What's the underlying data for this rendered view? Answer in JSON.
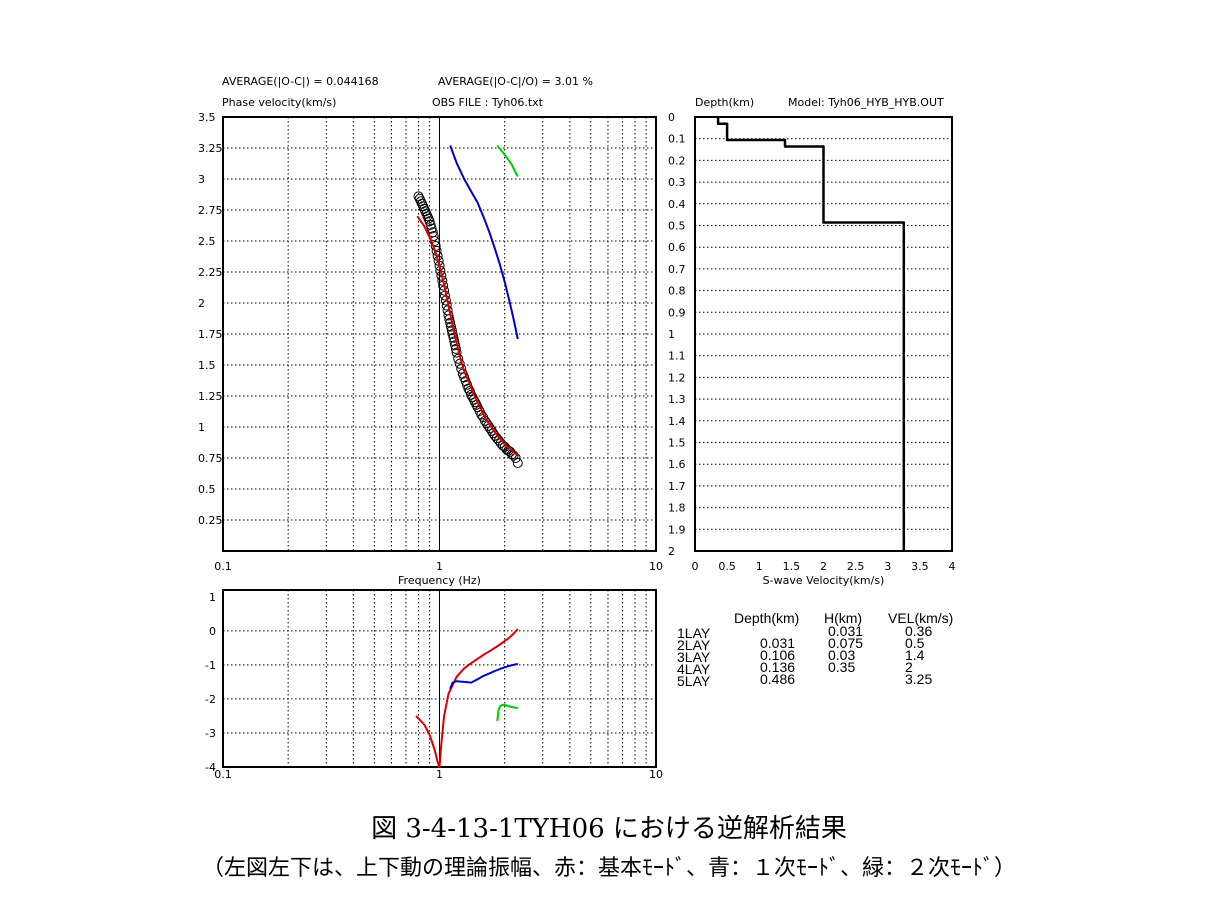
{
  "header": {
    "avg_abs": "AVERAGE(|O-C|) = 0.044168",
    "avg_rel": "AVERAGE(|O-C|/O) = 3.01 %",
    "phase_label": "Phase velocity(km/s)",
    "obs_file": "OBS FILE : Tyh06.txt",
    "depth_label": "Depth(km)",
    "model_label": "Model: Tyh06_HYB_HYB.OUT"
  },
  "chart_data": [
    {
      "type": "scatter",
      "id": "dispersion",
      "xscale": "log",
      "xlim": [
        0.1,
        10
      ],
      "ylim": [
        0,
        3.5
      ],
      "xlabel": "Frequency (Hz)",
      "ylabel": "Phase velocity(km/s)",
      "x_ticks": [
        "0.1",
        "1",
        "10"
      ],
      "y_ticks": [
        "0.25",
        "0.5",
        "0.75",
        "1",
        "1.25",
        "1.5",
        "1.75",
        "2",
        "2.25",
        "2.5",
        "2.75",
        "3",
        "3.25",
        "3.5"
      ],
      "observed": {
        "x": [
          0.8,
          0.81,
          0.82,
          0.83,
          0.84,
          0.85,
          0.86,
          0.87,
          0.88,
          0.89,
          0.9,
          0.91,
          0.92,
          0.93,
          0.94,
          0.95,
          0.96,
          0.97,
          0.98,
          0.99,
          1.0,
          1.01,
          1.02,
          1.03,
          1.04,
          1.05,
          1.06,
          1.07,
          1.08,
          1.09,
          1.1,
          1.11,
          1.12,
          1.13,
          1.14,
          1.15,
          1.16,
          1.17,
          1.18,
          1.19,
          1.2,
          1.22,
          1.24,
          1.26,
          1.28,
          1.3,
          1.32,
          1.34,
          1.36,
          1.38,
          1.4,
          1.42,
          1.44,
          1.46,
          1.48,
          1.5,
          1.53,
          1.56,
          1.59,
          1.62,
          1.65,
          1.68,
          1.71,
          1.74,
          1.77,
          1.8,
          1.84,
          1.88,
          1.92,
          1.96,
          2.0,
          2.04,
          2.08,
          2.12,
          2.16,
          2.2,
          2.25,
          2.3
        ],
        "y": [
          2.86,
          2.84,
          2.82,
          2.8,
          2.78,
          2.76,
          2.74,
          2.72,
          2.7,
          2.68,
          2.66,
          2.63,
          2.6,
          2.57,
          2.54,
          2.5,
          2.46,
          2.42,
          2.38,
          2.34,
          2.3,
          2.26,
          2.22,
          2.18,
          2.14,
          2.1,
          2.06,
          2.02,
          1.98,
          1.94,
          1.9,
          1.87,
          1.84,
          1.81,
          1.78,
          1.75,
          1.72,
          1.69,
          1.66,
          1.63,
          1.6,
          1.55,
          1.51,
          1.47,
          1.43,
          1.4,
          1.37,
          1.34,
          1.31,
          1.29,
          1.26,
          1.24,
          1.22,
          1.2,
          1.18,
          1.16,
          1.13,
          1.1,
          1.08,
          1.05,
          1.03,
          1.01,
          0.99,
          0.97,
          0.95,
          0.93,
          0.91,
          0.89,
          0.87,
          0.85,
          0.84,
          0.82,
          0.81,
          0.8,
          0.78,
          0.77,
          0.75,
          0.71
        ]
      },
      "series": [
        {
          "mode": "fundamental",
          "color": "#dd0000",
          "x": [
            0.79,
            0.85,
            0.9,
            0.95,
            1.0,
            1.05,
            1.1,
            1.15,
            1.2,
            1.25,
            1.3,
            1.4,
            1.5,
            1.6,
            1.7,
            1.8,
            1.9,
            2.0,
            2.1,
            2.2,
            2.3
          ],
          "y": [
            2.7,
            2.62,
            2.53,
            2.43,
            2.3,
            2.15,
            1.98,
            1.82,
            1.68,
            1.55,
            1.45,
            1.32,
            1.2,
            1.1,
            1.02,
            0.96,
            0.91,
            0.86,
            0.83,
            0.8,
            0.77
          ]
        },
        {
          "mode": "1st higher",
          "color": "#0000cc",
          "x": [
            1.12,
            1.2,
            1.3,
            1.4,
            1.5,
            1.6,
            1.7,
            1.8,
            1.9,
            2.0,
            2.1,
            2.2,
            2.3
          ],
          "y": [
            3.27,
            3.13,
            3.0,
            2.9,
            2.81,
            2.69,
            2.57,
            2.44,
            2.31,
            2.17,
            2.02,
            1.87,
            1.71
          ]
        },
        {
          "mode": "2nd higher",
          "color": "#00cc00",
          "x": [
            1.85,
            1.95,
            2.05,
            2.15,
            2.25,
            2.3
          ],
          "y": [
            3.27,
            3.22,
            3.17,
            3.12,
            3.05,
            3.02
          ]
        }
      ]
    },
    {
      "type": "line",
      "id": "amplitude",
      "xscale": "log",
      "xlim": [
        0.1,
        10
      ],
      "ylim": [
        -4,
        1.2
      ],
      "x_ticks": [
        "0.1",
        "1",
        "10"
      ],
      "y_ticks": [
        "1",
        "0",
        "-1",
        "-2",
        "-3",
        "-4"
      ],
      "series": [
        {
          "mode": "fundamental",
          "color": "#dd0000",
          "x": [
            0.78,
            0.85,
            0.9,
            0.95,
            0.98,
            1.0,
            1.02,
            1.05,
            1.1,
            1.2,
            1.3,
            1.4,
            1.5,
            1.6,
            1.7,
            1.8,
            1.9,
            2.0,
            2.1,
            2.2,
            2.3
          ],
          "y": [
            -2.5,
            -2.75,
            -3.05,
            -3.5,
            -3.85,
            -4.0,
            -3.3,
            -2.5,
            -1.85,
            -1.35,
            -1.1,
            -0.95,
            -0.82,
            -0.7,
            -0.6,
            -0.5,
            -0.4,
            -0.3,
            -0.2,
            -0.08,
            0.05
          ]
        },
        {
          "mode": "1st higher",
          "color": "#0000cc",
          "x": [
            1.12,
            1.15,
            1.2,
            1.3,
            1.4,
            1.5,
            1.6,
            1.7,
            1.8,
            1.9,
            2.0,
            2.1,
            2.2,
            2.3
          ],
          "y": [
            -1.7,
            -1.52,
            -1.48,
            -1.5,
            -1.52,
            -1.42,
            -1.32,
            -1.25,
            -1.18,
            -1.12,
            -1.07,
            -1.03,
            -1.0,
            -0.97
          ]
        },
        {
          "mode": "2nd higher",
          "color": "#00cc00",
          "x": [
            1.85,
            1.87,
            1.9,
            1.95,
            2.0,
            2.1,
            2.2,
            2.3
          ],
          "y": [
            -2.65,
            -2.35,
            -2.22,
            -2.17,
            -2.18,
            -2.22,
            -2.25,
            -2.27
          ]
        }
      ]
    },
    {
      "type": "line",
      "id": "velocity-model",
      "xlabel": "S-wave Velocity(km/s)",
      "ylabel": "Depth(km)",
      "xlim": [
        0,
        4
      ],
      "ylim": [
        2,
        0
      ],
      "x_ticks": [
        "0",
        "0.5",
        "1",
        "1.5",
        "2",
        "2.5",
        "3",
        "3.5",
        "4"
      ],
      "y_ticks": [
        "0",
        "0.1",
        "0.2",
        "0.3",
        "0.4",
        "0.5",
        "0.6",
        "0.7",
        "0.8",
        "0.9",
        "1",
        "1.1",
        "1.2",
        "1.3",
        "1.4",
        "1.5",
        "1.6",
        "1.7",
        "1.8",
        "1.9",
        "2"
      ],
      "x": [
        0.36,
        0.36,
        0.5,
        0.5,
        1.4,
        1.4,
        2,
        2,
        3.25,
        3.25
      ],
      "y": [
        0,
        0.031,
        0.031,
        0.106,
        0.106,
        0.136,
        0.136,
        0.486,
        0.486,
        2
      ]
    }
  ],
  "table": {
    "headers": [
      "Depth(km)",
      "H(km)",
      "VEL(km/s)"
    ],
    "rows": [
      {
        "label": "1LAY",
        "depth": "",
        "h": "0.031",
        "vel": "0.36"
      },
      {
        "label": "2LAY",
        "depth": "0.031",
        "h": "0.075",
        "vel": "0.5"
      },
      {
        "label": "3LAY",
        "depth": "0.106",
        "h": "0.03",
        "vel": "1.4"
      },
      {
        "label": "4LAY",
        "depth": "0.136",
        "h": "0.35",
        "vel": "2"
      },
      {
        "label": "5LAY",
        "depth": "0.486",
        "h": "",
        "vel": "3.25"
      }
    ]
  },
  "caption": {
    "line1": "図 3-4-13-1TYH06 における逆解析結果",
    "line2": "（左図左下は、上下動の理論振幅、赤：基本ﾓｰﾄﾞ、青：１次ﾓｰﾄﾞ、緑：２次ﾓｰﾄﾞ）"
  }
}
